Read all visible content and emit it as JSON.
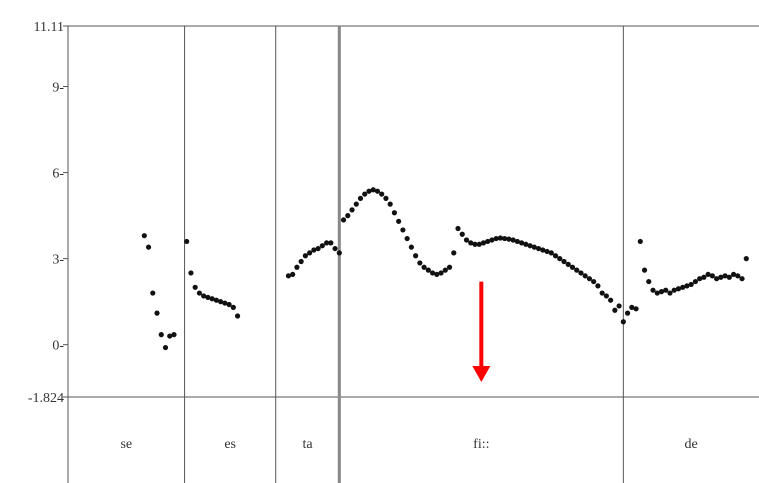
{
  "chart_data": {
    "type": "scatter",
    "ylim": [
      -1.824,
      11.11
    ],
    "y_ticks": [
      {
        "value": 11.11,
        "label": "11.11"
      },
      {
        "value": 9,
        "label": "9-"
      },
      {
        "value": 6,
        "label": "6-"
      },
      {
        "value": 3,
        "label": "3-"
      },
      {
        "value": 0,
        "label": "0-"
      },
      {
        "value": -1.824,
        "label": "-1.824"
      }
    ],
    "segments": [
      {
        "label": "se",
        "start": 0.0,
        "end": 0.275
      },
      {
        "label": "es",
        "start": 0.275,
        "end": 0.49
      },
      {
        "label": "ta",
        "start": 0.49,
        "end": 0.64
      },
      {
        "label": "fi::",
        "start": 0.64,
        "end": 1.31
      },
      {
        "label": "de",
        "start": 1.31,
        "end": 1.63
      }
    ],
    "thick_boundary_at": 0.64,
    "annotation": {
      "type": "arrow",
      "color": "#ff0000",
      "x": 0.975,
      "y_from": 2.2,
      "y_to": -1.3
    },
    "series": [
      {
        "values": [
          [
            0.18,
            3.8
          ],
          [
            0.19,
            3.4
          ],
          [
            0.2,
            1.8
          ],
          [
            0.21,
            1.1
          ],
          [
            0.22,
            0.35
          ],
          [
            0.23,
            -0.1
          ],
          [
            0.24,
            0.3
          ],
          [
            0.25,
            0.35
          ],
          [
            0.28,
            3.6
          ],
          [
            0.29,
            2.5
          ],
          [
            0.3,
            2.0
          ],
          [
            0.31,
            1.8
          ],
          [
            0.32,
            1.7
          ],
          [
            0.33,
            1.65
          ],
          [
            0.34,
            1.6
          ],
          [
            0.35,
            1.55
          ],
          [
            0.36,
            1.5
          ],
          [
            0.37,
            1.45
          ],
          [
            0.38,
            1.4
          ],
          [
            0.39,
            1.3
          ],
          [
            0.4,
            1.0
          ],
          [
            0.52,
            2.4
          ],
          [
            0.53,
            2.45
          ],
          [
            0.54,
            2.7
          ],
          [
            0.55,
            2.9
          ],
          [
            0.56,
            3.1
          ],
          [
            0.57,
            3.2
          ],
          [
            0.58,
            3.3
          ],
          [
            0.59,
            3.35
          ],
          [
            0.6,
            3.45
          ],
          [
            0.61,
            3.55
          ],
          [
            0.62,
            3.55
          ],
          [
            0.63,
            3.35
          ],
          [
            0.64,
            3.2
          ],
          [
            0.65,
            4.35
          ],
          [
            0.66,
            4.5
          ],
          [
            0.67,
            4.7
          ],
          [
            0.68,
            4.9
          ],
          [
            0.69,
            5.1
          ],
          [
            0.7,
            5.25
          ],
          [
            0.71,
            5.35
          ],
          [
            0.72,
            5.4
          ],
          [
            0.73,
            5.35
          ],
          [
            0.74,
            5.25
          ],
          [
            0.75,
            5.1
          ],
          [
            0.76,
            4.9
          ],
          [
            0.77,
            4.6
          ],
          [
            0.78,
            4.3
          ],
          [
            0.79,
            4.0
          ],
          [
            0.8,
            3.7
          ],
          [
            0.81,
            3.4
          ],
          [
            0.82,
            3.1
          ],
          [
            0.83,
            2.85
          ],
          [
            0.84,
            2.7
          ],
          [
            0.85,
            2.6
          ],
          [
            0.86,
            2.5
          ],
          [
            0.87,
            2.45
          ],
          [
            0.88,
            2.5
          ],
          [
            0.89,
            2.6
          ],
          [
            0.9,
            2.7
          ],
          [
            0.91,
            3.2
          ],
          [
            0.92,
            4.05
          ],
          [
            0.93,
            3.85
          ],
          [
            0.94,
            3.65
          ],
          [
            0.95,
            3.55
          ],
          [
            0.96,
            3.5
          ],
          [
            0.97,
            3.5
          ],
          [
            0.98,
            3.55
          ],
          [
            0.99,
            3.6
          ],
          [
            1.0,
            3.65
          ],
          [
            1.01,
            3.7
          ],
          [
            1.02,
            3.72
          ],
          [
            1.03,
            3.7
          ],
          [
            1.04,
            3.68
          ],
          [
            1.05,
            3.65
          ],
          [
            1.06,
            3.6
          ],
          [
            1.07,
            3.55
          ],
          [
            1.08,
            3.5
          ],
          [
            1.09,
            3.45
          ],
          [
            1.1,
            3.4
          ],
          [
            1.11,
            3.35
          ],
          [
            1.12,
            3.3
          ],
          [
            1.13,
            3.25
          ],
          [
            1.14,
            3.2
          ],
          [
            1.15,
            3.1
          ],
          [
            1.16,
            3.0
          ],
          [
            1.17,
            2.9
          ],
          [
            1.18,
            2.8
          ],
          [
            1.19,
            2.7
          ],
          [
            1.2,
            2.6
          ],
          [
            1.21,
            2.5
          ],
          [
            1.22,
            2.4
          ],
          [
            1.23,
            2.3
          ],
          [
            1.24,
            2.2
          ],
          [
            1.25,
            2.05
          ],
          [
            1.26,
            1.8
          ],
          [
            1.27,
            1.7
          ],
          [
            1.28,
            1.55
          ],
          [
            1.29,
            1.2
          ],
          [
            1.3,
            1.35
          ],
          [
            1.31,
            0.8
          ],
          [
            1.32,
            1.1
          ],
          [
            1.33,
            1.3
          ],
          [
            1.34,
            1.25
          ],
          [
            1.35,
            3.6
          ],
          [
            1.36,
            2.6
          ],
          [
            1.37,
            2.2
          ],
          [
            1.38,
            1.9
          ],
          [
            1.39,
            1.8
          ],
          [
            1.4,
            1.85
          ],
          [
            1.41,
            1.9
          ],
          [
            1.42,
            1.8
          ],
          [
            1.43,
            1.9
          ],
          [
            1.44,
            1.95
          ],
          [
            1.45,
            2.0
          ],
          [
            1.46,
            2.05
          ],
          [
            1.47,
            2.1
          ],
          [
            1.48,
            2.2
          ],
          [
            1.49,
            2.3
          ],
          [
            1.5,
            2.35
          ],
          [
            1.51,
            2.45
          ],
          [
            1.52,
            2.4
          ],
          [
            1.53,
            2.3
          ],
          [
            1.54,
            2.35
          ],
          [
            1.55,
            2.4
          ],
          [
            1.56,
            2.35
          ],
          [
            1.57,
            2.45
          ],
          [
            1.58,
            2.4
          ],
          [
            1.59,
            2.3
          ],
          [
            1.6,
            3.0
          ]
        ]
      }
    ]
  }
}
